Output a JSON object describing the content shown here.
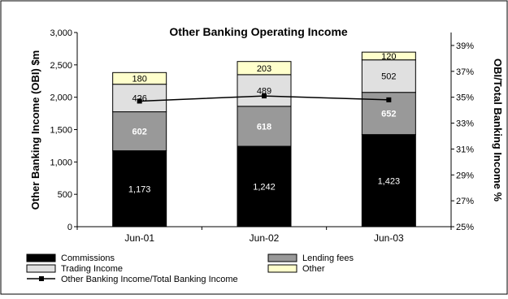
{
  "chart_data": {
    "type": "bar",
    "stacked": true,
    "title": "Other Banking Operating Income",
    "ylabel": "Other Banking Income (OBI) $m",
    "y2label": "OBI/Total Banking Income %",
    "categories": [
      "Jun-01",
      "Jun-02",
      "Jun-03"
    ],
    "ylim": [
      0,
      3000
    ],
    "yticks": [
      0,
      500,
      1000,
      1500,
      2000,
      2500,
      3000
    ],
    "ytick_labels": [
      "0",
      "500",
      "1,000",
      "1,500",
      "2,000",
      "2,500",
      "3,000"
    ],
    "y2lim": [
      25,
      40
    ],
    "y2ticks": [
      25,
      27,
      29,
      31,
      33,
      35,
      37,
      39
    ],
    "y2tick_labels": [
      "25%",
      "27%",
      "29%",
      "31%",
      "33%",
      "35%",
      "37%",
      "39%"
    ],
    "series": [
      {
        "name": "Commissions",
        "values": [
          1173,
          1242,
          1423
        ],
        "labels": [
          "1,173",
          "1,242",
          "1,423"
        ],
        "color": "#000000",
        "label_color": "#ffffff",
        "label_bold": false
      },
      {
        "name": "Lending fees",
        "values": [
          602,
          618,
          652
        ],
        "labels": [
          "602",
          "618",
          "652"
        ],
        "color": "#999999",
        "label_color": "#ffffff",
        "label_bold": true
      },
      {
        "name": "Trading Income",
        "values": [
          426,
          489,
          502
        ],
        "labels": [
          "426",
          "489",
          "502"
        ],
        "color": "#e0e0e0",
        "label_color": "#000000",
        "label_bold": false
      },
      {
        "name": "Other",
        "values": [
          180,
          203,
          120
        ],
        "labels": [
          "180",
          "203",
          "120"
        ],
        "color": "#ffffcc",
        "label_color": "#000000",
        "label_bold": false
      }
    ],
    "line_series": {
      "name": "Other Banking Income/Total Banking Income",
      "axis": "secondary",
      "values": [
        34.7,
        35.1,
        34.8
      ],
      "color": "#000000"
    },
    "grid": false,
    "legend_position": "bottom"
  }
}
